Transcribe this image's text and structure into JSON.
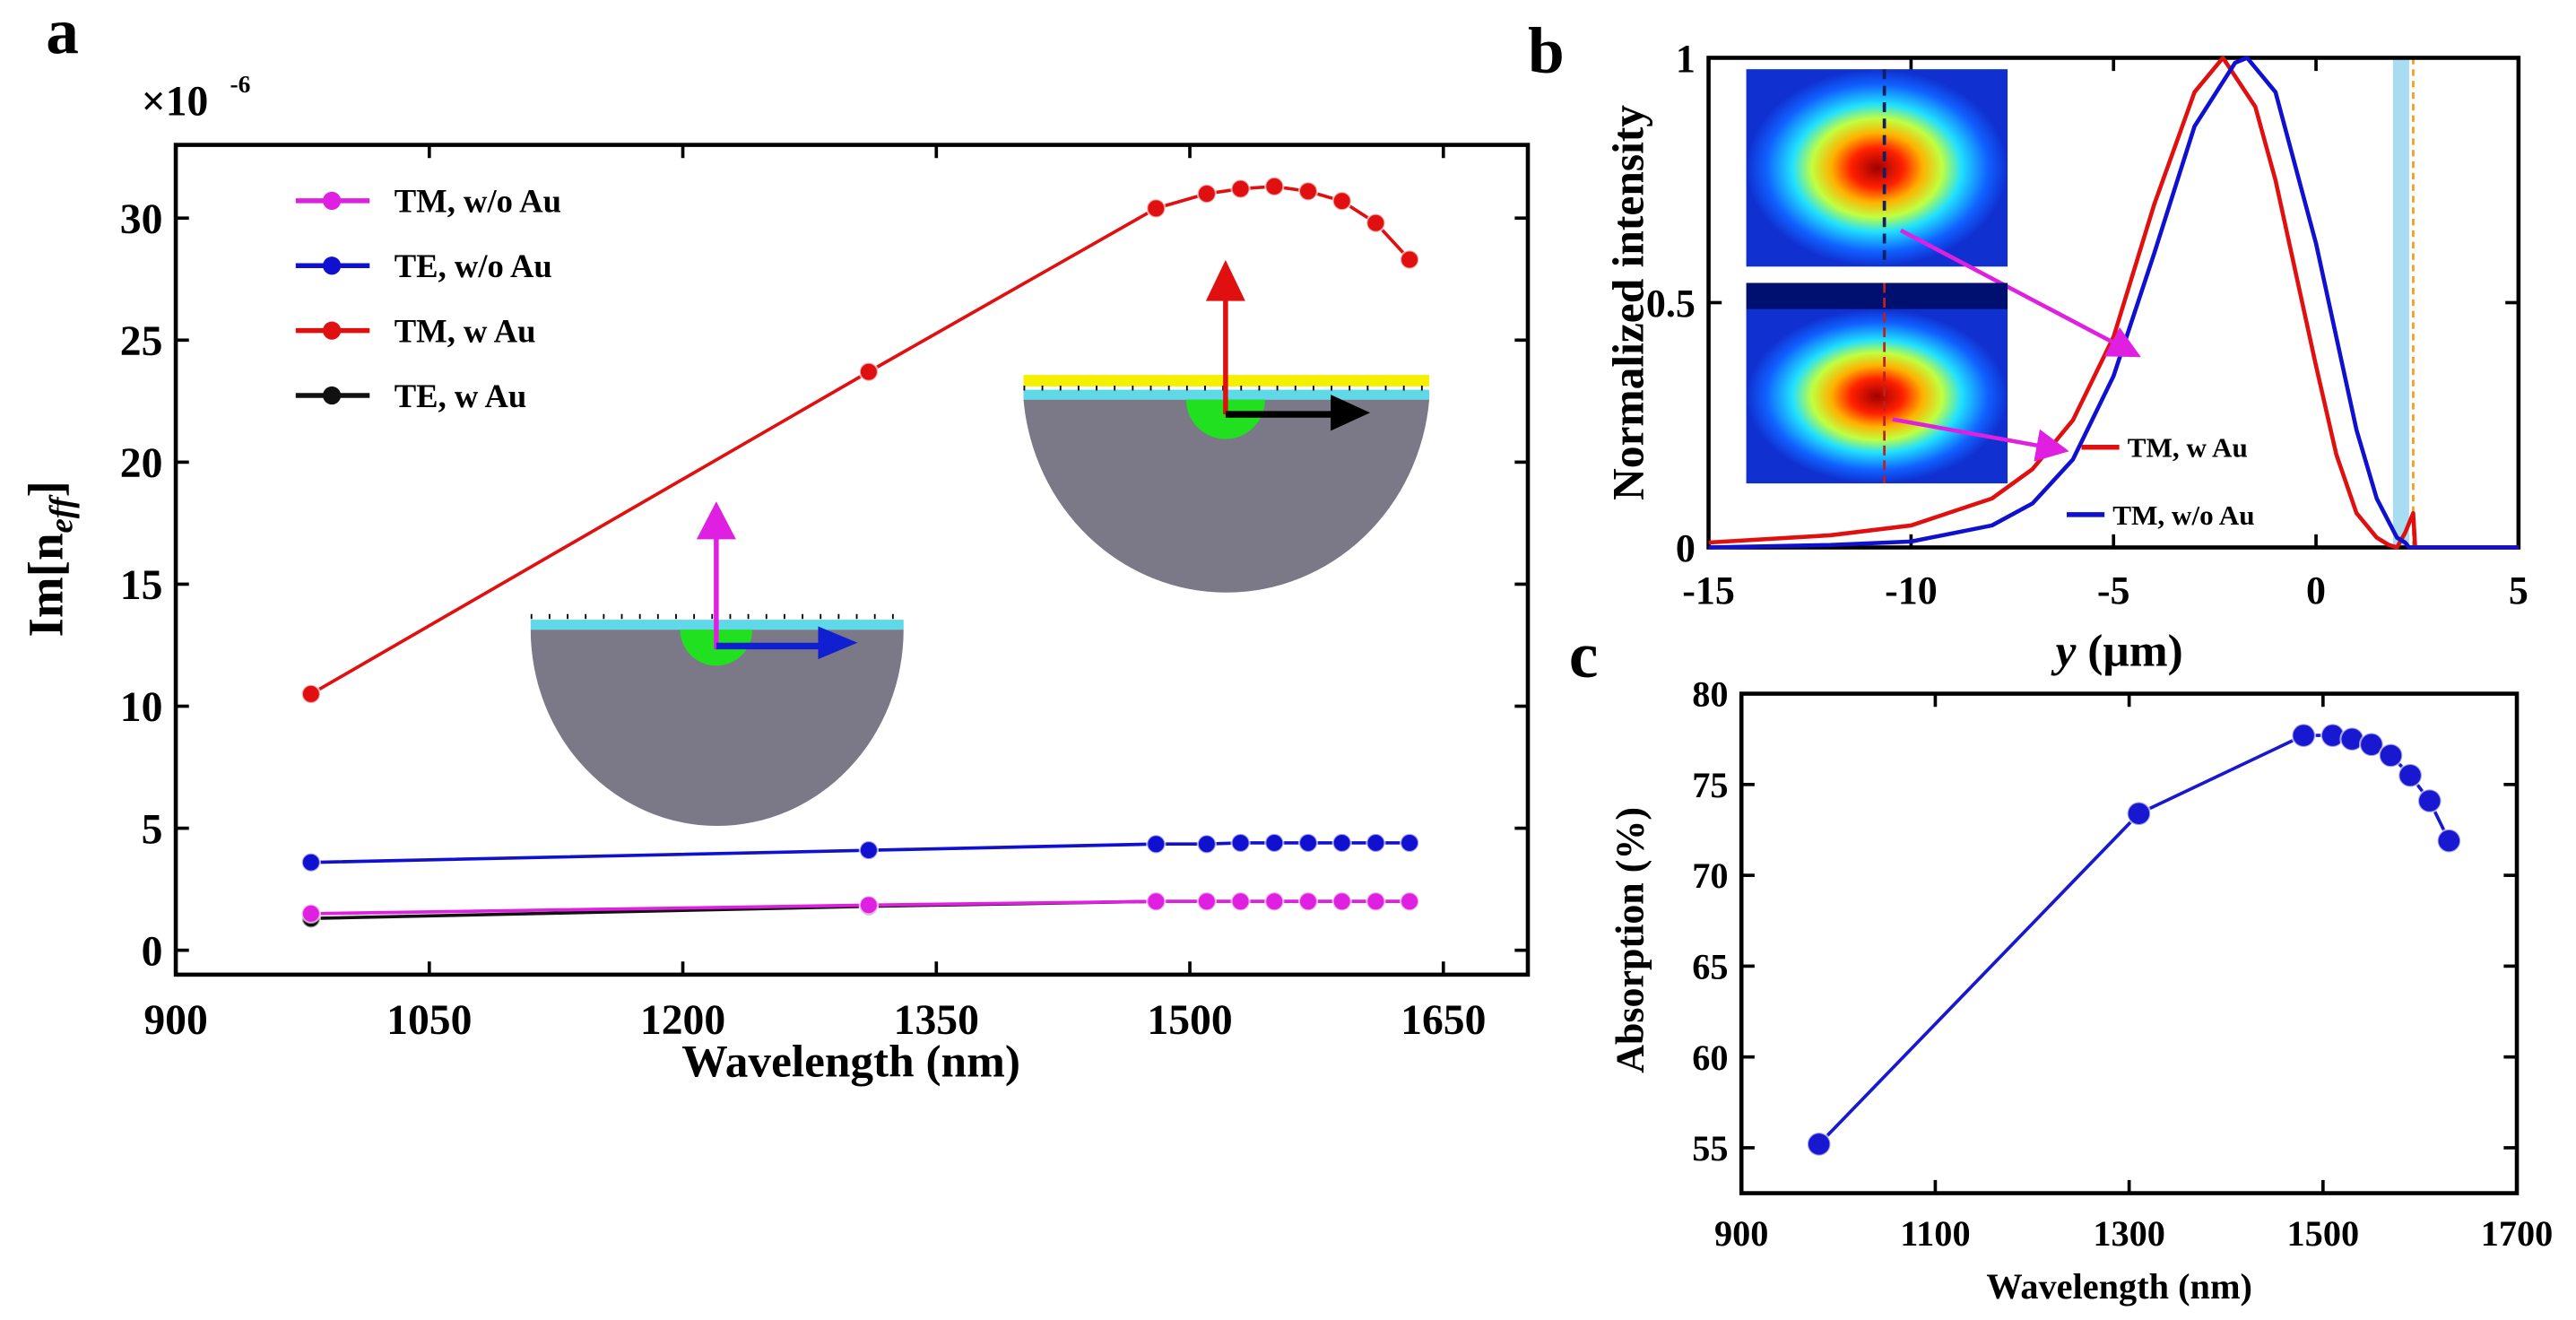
{
  "chart_data": [
    {
      "panel": "a",
      "type": "line",
      "xlabel": "Wavelength (nm)",
      "ylabel": "Im[n",
      "ylabel_sub": "eff",
      "ylabel_close": "]",
      "multiplier": "×10",
      "multiplier_exp": "-6",
      "xlim": [
        900,
        1700
      ],
      "ylim": [
        -1,
        33
      ],
      "xticks": [
        900,
        1050,
        1200,
        1350,
        1500,
        1650
      ],
      "yticks": [
        0,
        5,
        10,
        15,
        20,
        25,
        30
      ],
      "legend_position": "top-left",
      "series": [
        {
          "name": "TM, w/o Au",
          "color": "#e020e0",
          "x": [
            980,
            1310,
            1480,
            1510,
            1530,
            1550,
            1570,
            1590,
            1610,
            1630
          ],
          "y": [
            1.5,
            1.85,
            2.0,
            2.0,
            2.0,
            2.0,
            2.0,
            2.0,
            2.0,
            2.0
          ]
        },
        {
          "name": "TE, w/o Au",
          "color": "#1010d0",
          "x": [
            980,
            1310,
            1480,
            1510,
            1530,
            1550,
            1570,
            1590,
            1610,
            1630
          ],
          "y": [
            3.6,
            4.1,
            4.35,
            4.35,
            4.4,
            4.4,
            4.4,
            4.4,
            4.4,
            4.4
          ]
        },
        {
          "name": "TM, w Au",
          "color": "#e01010",
          "x": [
            980,
            1310,
            1480,
            1510,
            1530,
            1550,
            1570,
            1590,
            1610,
            1630
          ],
          "y": [
            10.5,
            23.7,
            30.4,
            31.0,
            31.2,
            31.3,
            31.1,
            30.7,
            29.8,
            28.3
          ]
        },
        {
          "name": "TE, w Au",
          "color": "#111111",
          "x": [
            980,
            1310,
            1480,
            1510,
            1530,
            1550,
            1570,
            1590,
            1610,
            1630
          ],
          "y": [
            1.3,
            1.8,
            2.0,
            2.0,
            2.0,
            2.0,
            2.0,
            2.0,
            2.0,
            2.0
          ]
        }
      ]
    },
    {
      "panel": "b",
      "type": "line",
      "xlabel_italic": "y",
      "xlabel": " (µm)",
      "ylabel": "Normalized intensity",
      "xlim": [
        -15,
        5
      ],
      "ylim": [
        0,
        1
      ],
      "xticks": [
        -15,
        -10,
        -5,
        0,
        5
      ],
      "yticks": [
        0,
        0.5,
        1
      ],
      "ytick_labels": [
        "0",
        "0.5",
        "1"
      ],
      "legend_position": "bottom-right",
      "series": [
        {
          "name": "TM, w Au",
          "color": "#e01010",
          "x": [
            -15,
            -12,
            -10,
            -8,
            -7,
            -6,
            -5,
            -4,
            -3,
            -2.3,
            -1.5,
            -1,
            0,
            0.5,
            1,
            1.5,
            1.8,
            2.0,
            2.2,
            2.4,
            2.45,
            3,
            5
          ],
          "y": [
            0.01,
            0.025,
            0.045,
            0.1,
            0.16,
            0.26,
            0.43,
            0.7,
            0.93,
            1,
            0.9,
            0.75,
            0.37,
            0.19,
            0.07,
            0.02,
            0.005,
            0.0,
            0.03,
            0.07,
            0,
            0,
            0
          ]
        },
        {
          "name": "TM, w/o Au",
          "color": "#1010d0",
          "x": [
            -15,
            -12,
            -10,
            -8,
            -7,
            -6,
            -5,
            -4,
            -3,
            -2,
            -1.7,
            -1,
            0,
            0.5,
            1,
            1.5,
            2.0,
            2.2,
            2.3,
            3,
            5
          ],
          "y": [
            0.0,
            0.005,
            0.012,
            0.045,
            0.09,
            0.18,
            0.35,
            0.6,
            0.86,
            0.99,
            1,
            0.93,
            0.62,
            0.43,
            0.24,
            0.1,
            0.02,
            0.01,
            0,
            0,
            0
          ]
        }
      ],
      "au_region": [
        1.9,
        2.3
      ],
      "au_line": 2.4,
      "au_region_color": "#a8dcf0",
      "au_line_color": "#f0a020"
    },
    {
      "panel": "c",
      "type": "line",
      "xlabel": "Wavelength (nm)",
      "ylabel": "Absorption (%)",
      "xlim": [
        900,
        1700
      ],
      "ylim": [
        52.5,
        80
      ],
      "xticks": [
        900,
        1100,
        1300,
        1500,
        1700
      ],
      "yticks": [
        55,
        60,
        65,
        70,
        75,
        80
      ],
      "series": [
        {
          "name": "Absorption",
          "color": "#1818d0",
          "x": [
            980,
            1310,
            1480,
            1510,
            1530,
            1550,
            1570,
            1590,
            1610,
            1630
          ],
          "y": [
            55.2,
            73.4,
            77.7,
            77.7,
            77.5,
            77.2,
            76.6,
            75.5,
            74.1,
            71.9
          ]
        }
      ]
    }
  ],
  "labels": {
    "a": "a",
    "b": "b",
    "c": "c"
  }
}
